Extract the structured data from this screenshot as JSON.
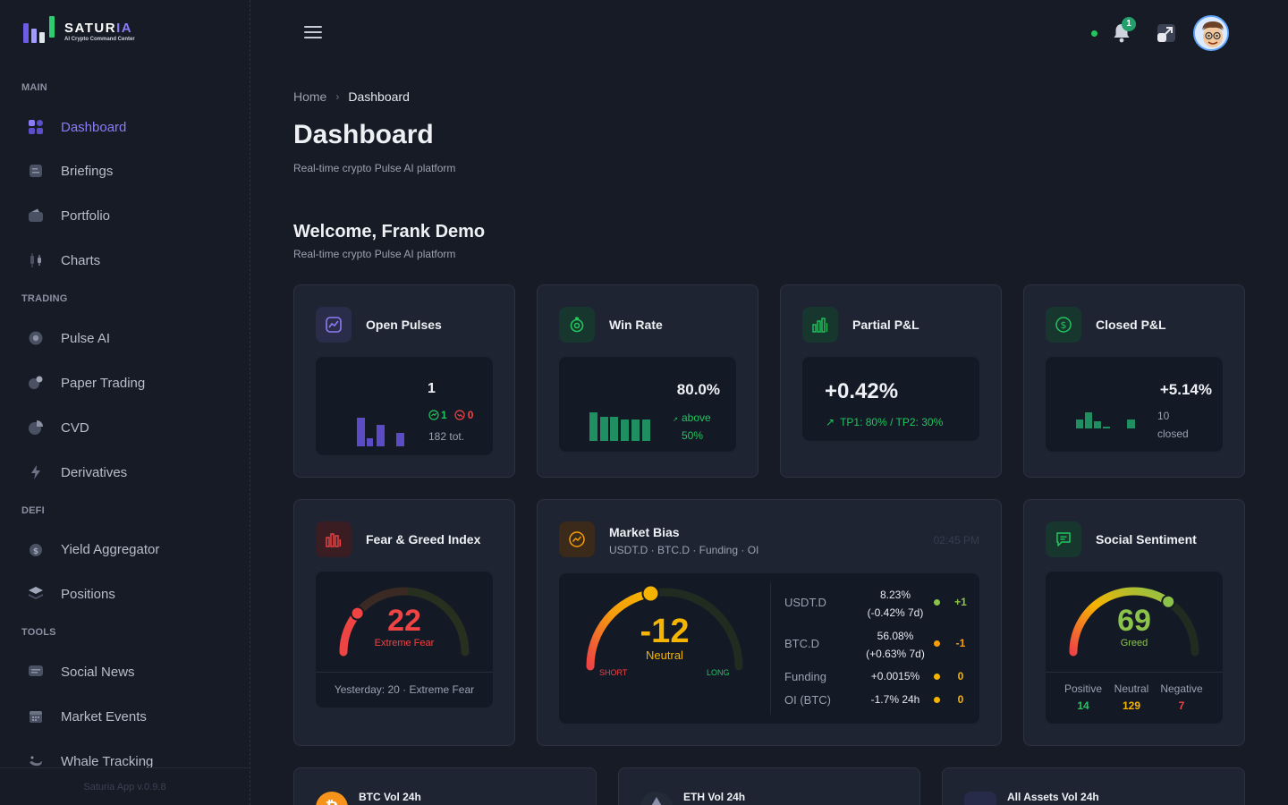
{
  "app": {
    "name_main": "SATUR",
    "name_accent": "IA",
    "tagline": "AI Crypto Command Center",
    "version": "Saturia App v.0.9.8"
  },
  "sidebar": {
    "sections": [
      {
        "title": "MAIN"
      },
      {
        "title": "TRADING"
      },
      {
        "title": "DEFI"
      },
      {
        "title": "TOOLS"
      }
    ],
    "items": [
      {
        "label": "Dashboard",
        "icon": "dashboard-grid-icon",
        "active": true
      },
      {
        "label": "Briefings",
        "icon": "briefing-icon"
      },
      {
        "label": "Portfolio",
        "icon": "wallet-icon"
      },
      {
        "label": "Charts",
        "icon": "candlestick-icon"
      },
      {
        "label": "Pulse AI",
        "icon": "pulse-icon"
      },
      {
        "label": "Paper Trading",
        "icon": "paper-trading-icon"
      },
      {
        "label": "CVD",
        "icon": "pie-icon"
      },
      {
        "label": "Derivatives",
        "icon": "bolt-icon"
      },
      {
        "label": "Yield Aggregator",
        "icon": "coin-icon"
      },
      {
        "label": "Positions",
        "icon": "layers-icon"
      },
      {
        "label": "Social News",
        "icon": "chat-icon"
      },
      {
        "label": "Market Events",
        "icon": "calendar-icon"
      },
      {
        "label": "Whale Tracking",
        "icon": "whale-icon"
      }
    ]
  },
  "topbar": {
    "notification_count": "1"
  },
  "header": {
    "breadcrumb_home": "Home",
    "breadcrumb_current": "Dashboard",
    "title": "Dashboard",
    "subtitle": "Real-time crypto Pulse AI platform",
    "welcome": "Welcome, Frank Demo",
    "welcome_sub": "Real-time crypto Pulse AI platform"
  },
  "stats": {
    "open_pulses": {
      "title": "Open Pulses",
      "value": "1",
      "wins": "1",
      "losses": "0",
      "total": "182 tot."
    },
    "win_rate": {
      "title": "Win Rate",
      "value": "80.0%",
      "note_line1": "above",
      "note_line2": "50%"
    },
    "partial_pnl": {
      "title": "Partial P&L",
      "value": "+0.42%",
      "detail": "TP1: 80% / TP2: 30%"
    },
    "closed_pnl": {
      "title": "Closed P&L",
      "value": "+5.14%",
      "note_line1": "10",
      "note_line2": "closed"
    }
  },
  "fear_greed": {
    "title": "Fear & Greed Index",
    "value": "22",
    "label": "Extreme Fear",
    "level": 22,
    "yesterday": "Yesterday: 20 · Extreme Fear"
  },
  "market_bias": {
    "title": "Market Bias",
    "subtitle": "USDT.D · BTC.D · Funding · OI",
    "time": "02:45 PM",
    "value": "-12",
    "label": "Neutral",
    "short_label": "SHORT",
    "long_label": "LONG",
    "rows": [
      {
        "name": "USDT.D",
        "val1": "8.23%",
        "val2": "(-0.42% 7d)",
        "dot": "#8bc34a",
        "score": "+1",
        "score_color": "#8bc34a"
      },
      {
        "name": "BTC.D",
        "val1": "56.08%",
        "val2": "(+0.63% 7d)",
        "dot": "#f59e0b",
        "score": "-1",
        "score_color": "#f59e0b"
      },
      {
        "name": "Funding",
        "val1": "+0.0015%",
        "val2": "",
        "dot": "#f5b400",
        "score": "0",
        "score_color": "#f5b400"
      },
      {
        "name": "OI (BTC)",
        "val1": "-1.7% 24h",
        "val2": "",
        "dot": "#f5b400",
        "score": "0",
        "score_color": "#f5b400"
      }
    ]
  },
  "social": {
    "title": "Social Sentiment",
    "value": "69",
    "label": "Greed",
    "level": 69,
    "positive_label": "Positive",
    "neutral_label": "Neutral",
    "negative_label": "Negative",
    "positive": "14",
    "neutral": "129",
    "negative": "7"
  },
  "volume_cards": [
    {
      "title": "BTC Vol 24h"
    },
    {
      "title": "ETH Vol 24h"
    },
    {
      "title": "All Assets Vol 24h"
    }
  ],
  "colors": {
    "accent": "#8b7cf6",
    "green": "#22c55e",
    "red": "#ef4444",
    "yellow": "#f5b400"
  }
}
